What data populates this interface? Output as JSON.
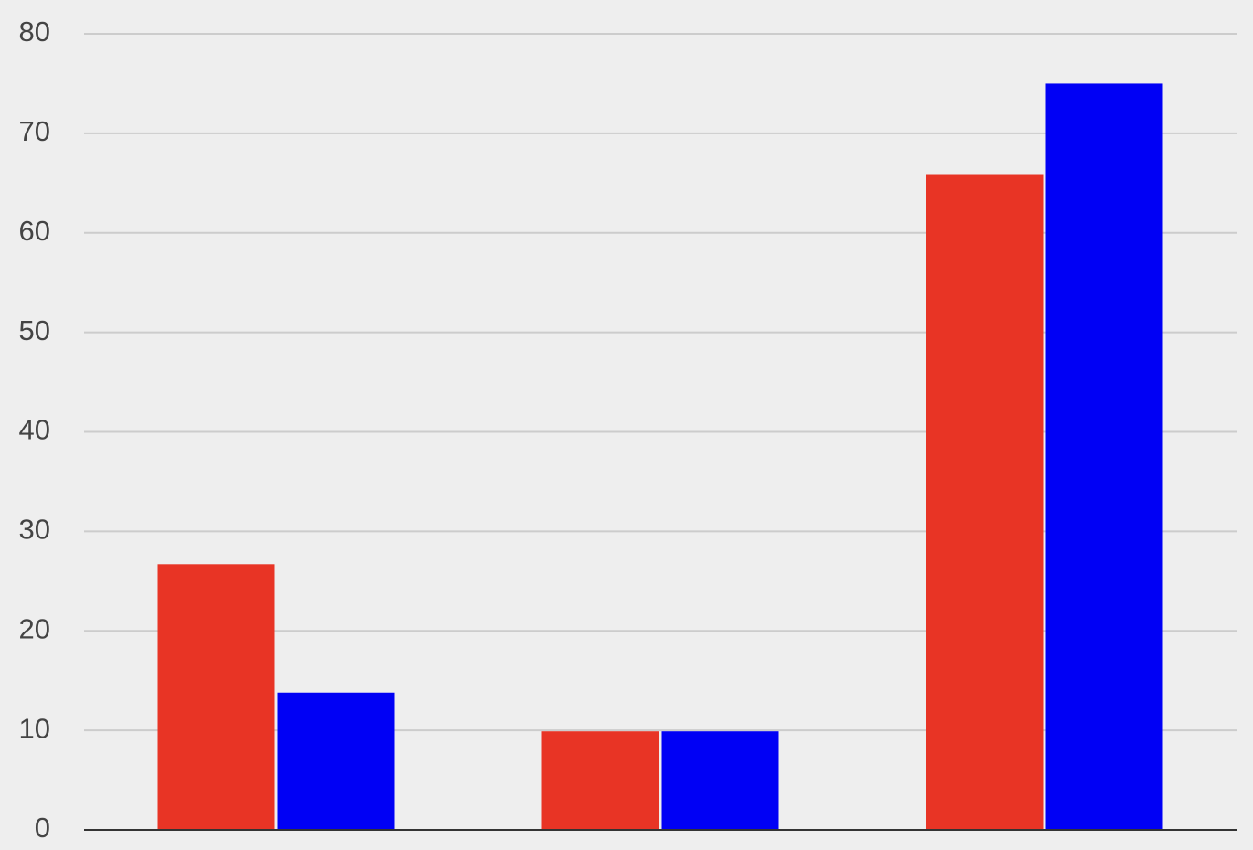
{
  "chart_data": {
    "type": "bar",
    "categories": [
      null,
      null,
      null
    ],
    "series": [
      {
        "color": "#e83425",
        "values": [
          26.7,
          9.9,
          65.9
        ]
      },
      {
        "color": "#0000f5",
        "values": [
          13.8,
          9.9,
          75
        ]
      }
    ],
    "ylim": [
      0,
      80
    ],
    "yticks": [
      0,
      10,
      20,
      30,
      40,
      50,
      60,
      70,
      80
    ],
    "grid": true
  }
}
